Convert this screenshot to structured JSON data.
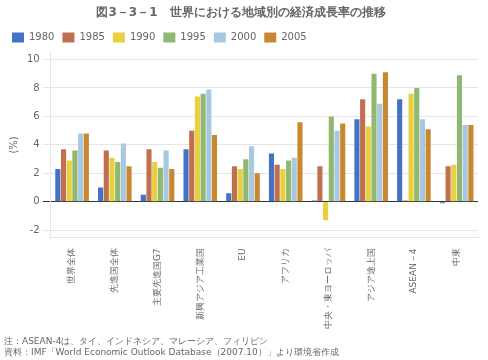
{
  "chart_data": {
    "type": "bar",
    "title": "図3－3－1　世界における地域別の経済成長率の推移",
    "y_label": "(%)",
    "annotations": [
      "注：ASEAN-4は、タイ、インドネシア、マレーシア、フィリピン",
      "資料：IMF「World Economic Outlook Database（2007.10）」より環境省作成"
    ],
    "categories": [
      "世界全体",
      "先進国全体",
      "主要先進国G7",
      "新興アジア工業国",
      "EU",
      "アフリカ",
      "中央・東ヨーロッパ",
      "アジア途上国",
      "ASEAN－4",
      "中東"
    ],
    "series": [
      {
        "name": "1980",
        "color": "#4472c4",
        "values": [
          2.3,
          1.0,
          0.5,
          3.7,
          0.6,
          3.4,
          0.1,
          5.8,
          7.2,
          -0.1
        ]
      },
      {
        "name": "1985",
        "color": "#c07050",
        "values": [
          3.7,
          3.6,
          3.7,
          5.0,
          2.5,
          2.6,
          2.5,
          7.2,
          0.1,
          2.5
        ]
      },
      {
        "name": "1990",
        "color": "#e8d040",
        "values": [
          2.9,
          3.1,
          2.8,
          7.4,
          2.3,
          2.3,
          -1.3,
          5.3,
          7.6,
          2.6
        ]
      },
      {
        "name": "1995",
        "color": "#90b870",
        "values": [
          3.6,
          2.8,
          2.4,
          7.6,
          3.0,
          2.9,
          6.0,
          9.0,
          8.0,
          8.9
        ]
      },
      {
        "name": "2000",
        "color": "#a8c8e0",
        "values": [
          4.8,
          4.1,
          3.6,
          7.9,
          3.9,
          3.1,
          5.0,
          6.9,
          5.8,
          5.4
        ]
      },
      {
        "name": "2005",
        "color": "#c88830",
        "values": [
          4.8,
          2.5,
          2.3,
          4.7,
          2.0,
          5.6,
          5.5,
          9.1,
          5.1,
          5.4
        ]
      }
    ],
    "ylim": [
      -2.5,
      10.5
    ],
    "yticks": [
      -2,
      0,
      2,
      4,
      6,
      8,
      10
    ],
    "grid": true,
    "legend": "upper left"
  }
}
